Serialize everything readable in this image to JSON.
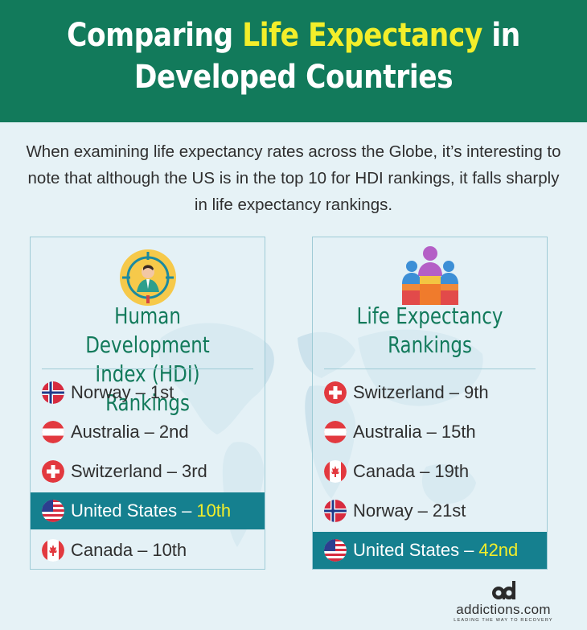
{
  "header": {
    "title_pre": "Comparing ",
    "title_highlight": "Life Expectancy",
    "title_post": " in",
    "title_line2": "Developed Countries"
  },
  "intro": "When examining life expectancy rates across the Globe, it’s interesting to note that although the US is in the top 10 for HDI rankings, it falls sharply in life expectancy rankings.",
  "hdi": {
    "icon": "person-target-icon",
    "title_line1": "Human Development",
    "title_line2": "Index (HDI) Rankings",
    "rows": [
      {
        "country": "Norway",
        "rank": "1st",
        "flag": "norway"
      },
      {
        "country": "Australia",
        "rank": "2nd",
        "flag": "austria"
      },
      {
        "country": "Switzerland",
        "rank": "3rd",
        "flag": "switzerland"
      },
      {
        "country": "United States",
        "rank": "10th",
        "flag": "usa",
        "highlight": true
      },
      {
        "country": "Canada",
        "rank": "10th",
        "flag": "canada"
      }
    ]
  },
  "life": {
    "icon": "podium-people-icon",
    "title_line1": "Life Expectancy",
    "title_line2": "Rankings",
    "rows": [
      {
        "country": "Switzerland",
        "rank": "9th",
        "flag": "switzerland"
      },
      {
        "country": "Australia",
        "rank": "15th",
        "flag": "austria"
      },
      {
        "country": "Canada",
        "rank": "19th",
        "flag": "canada"
      },
      {
        "country": "Norway",
        "rank": "21st",
        "flag": "norway"
      },
      {
        "country": "United States",
        "rank": "42nd",
        "flag": "usa",
        "highlight": true
      }
    ]
  },
  "colors": {
    "header_bg": "#127a5b",
    "highlight_text": "#f3ee2a",
    "highlight_row": "#15808f"
  },
  "logo": {
    "name": "addictions.com",
    "tagline": "LEADING THE WAY TO RECOVERY"
  }
}
